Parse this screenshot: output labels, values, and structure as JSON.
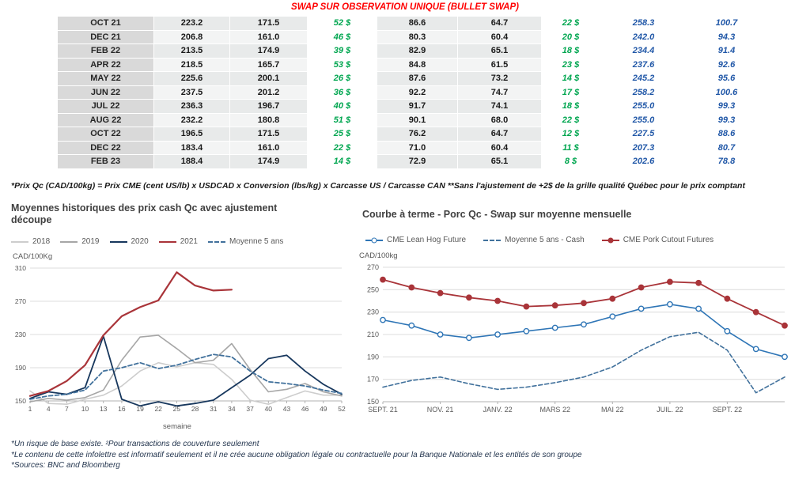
{
  "title": "SWAP SUR OBSERVATION UNIQUE (BULLET SWAP)",
  "colors": {
    "title-red": "#ff0000",
    "green": "#00a650",
    "blue": "#2057a7",
    "month-bg": "#d9d9d9",
    "band-a": "#e8eaea",
    "band-b": "#f3f4f4",
    "axis-text": "#595959",
    "chart-title": "#404040",
    "footnote-navy": "#24364f"
  },
  "table": {
    "rows": [
      [
        "OCT 21",
        "223.2",
        "171.5",
        "52 $",
        "86.6",
        "64.7",
        "22 $",
        "258.3",
        "100.7"
      ],
      [
        "DEC 21",
        "206.8",
        "161.0",
        "46 $",
        "80.3",
        "60.4",
        "20 $",
        "242.0",
        "94.3"
      ],
      [
        "FEB 22",
        "213.5",
        "174.9",
        "39 $",
        "82.9",
        "65.1",
        "18 $",
        "234.4",
        "91.4"
      ],
      [
        "APR 22",
        "218.5",
        "165.7",
        "53 $",
        "84.8",
        "61.5",
        "23 $",
        "237.6",
        "92.6"
      ],
      [
        "MAY 22",
        "225.6",
        "200.1",
        "26 $",
        "87.6",
        "73.2",
        "14 $",
        "245.2",
        "95.6"
      ],
      [
        "JUN 22",
        "237.5",
        "201.2",
        "36 $",
        "92.2",
        "74.7",
        "17 $",
        "258.2",
        "100.6"
      ],
      [
        "JUL 22",
        "236.3",
        "196.7",
        "40 $",
        "91.7",
        "74.1",
        "18 $",
        "255.0",
        "99.3"
      ],
      [
        "AUG 22",
        "232.2",
        "180.8",
        "51 $",
        "90.1",
        "68.0",
        "22 $",
        "255.0",
        "99.3"
      ],
      [
        "OCT 22",
        "196.5",
        "171.5",
        "25 $",
        "76.2",
        "64.7",
        "12 $",
        "227.5",
        "88.6"
      ],
      [
        "DEC 22",
        "183.4",
        "161.0",
        "22 $",
        "71.0",
        "60.4",
        "11 $",
        "207.3",
        "80.7"
      ],
      [
        "FEB 23",
        "188.4",
        "174.9",
        "14 $",
        "72.9",
        "65.1",
        "8 $",
        "202.6",
        "78.8"
      ]
    ],
    "footnote": "*Prix Qc (CAD/100kg) = Prix CME (cent US/lb) x USDCAD x Conversion (lbs/kg) x Carcasse US / Carcasse CAN **Sans l'ajustement de +2$ de la grille qualité Québec pour le prix comptant"
  },
  "chart_data": [
    {
      "type": "line",
      "title": "Moyennes historiques des prix cash Qc avec ajustement découpe",
      "ylabel": "CAD/100Kg",
      "xlabel": "semaine",
      "xlim": [
        1,
        52
      ],
      "ylim": [
        150,
        310
      ],
      "yticks": [
        150,
        190,
        230,
        270,
        310
      ],
      "xticks": [
        1,
        4,
        7,
        10,
        13,
        16,
        19,
        22,
        25,
        28,
        31,
        34,
        37,
        40,
        43,
        46,
        49,
        52
      ],
      "x": [
        1,
        4,
        7,
        10,
        13,
        16,
        19,
        22,
        25,
        28,
        31,
        34,
        37,
        40,
        43,
        46,
        49,
        52
      ],
      "grid": true,
      "legend_position": "top-left",
      "series": [
        {
          "name": "2018",
          "color": "#cdcdcd",
          "width": 1.6,
          "values": [
            162,
            147,
            146,
            152,
            157,
            168,
            186,
            196,
            191,
            196,
            194,
            176,
            151,
            146,
            154,
            162,
            157,
            157
          ]
        },
        {
          "name": "2019",
          "color": "#a6a6a6",
          "width": 1.6,
          "values": [
            149,
            153,
            151,
            154,
            163,
            199,
            227,
            229,
            213,
            196,
            199,
            219,
            188,
            161,
            164,
            171,
            161,
            156
          ]
        },
        {
          "name": "2020",
          "color": "#17375d",
          "width": 1.8,
          "values": [
            153,
            161,
            158,
            166,
            228,
            152,
            144,
            149,
            144,
            147,
            151,
            166,
            181,
            201,
            205,
            186,
            170,
            158
          ]
        },
        {
          "name": "2021",
          "color": "#a93439",
          "width": 2.2,
          "values": [
            156,
            162,
            174,
            193,
            229,
            252,
            263,
            271,
            305,
            289,
            283,
            284
          ]
        },
        {
          "name": "Moyenne 5 ans",
          "color": "#41719c",
          "width": 1.8,
          "dash": true,
          "values": [
            152,
            156,
            158,
            163,
            186,
            190,
            196,
            189,
            193,
            200,
            206,
            203,
            186,
            173,
            171,
            168,
            163,
            159
          ]
        }
      ]
    },
    {
      "type": "line",
      "title": "Courbe à terme - Porc Qc - Swap sur moyenne mensuelle",
      "ylabel": "CAD/100kg",
      "xlabel": "",
      "xlim": [
        0,
        14
      ],
      "ylim": [
        150,
        270
      ],
      "yticks": [
        150,
        170,
        190,
        210,
        230,
        250,
        270
      ],
      "x": [
        0,
        1,
        2,
        3,
        4,
        5,
        6,
        7,
        8,
        9,
        10,
        11,
        12,
        13,
        14
      ],
      "xtick_positions": [
        0,
        2,
        4,
        6,
        8,
        10,
        12
      ],
      "xtick_labels": [
        "SEPT. 21",
        "NOV. 21",
        "JANV. 22",
        "MARS 22",
        "MAI 22",
        "JUIL. 22",
        "SEPT. 22"
      ],
      "grid": true,
      "legend_position": "top",
      "series": [
        {
          "name": "CME Lean Hog Future",
          "color": "#2e75b6",
          "width": 1.6,
          "marker": "open",
          "values": [
            223,
            218,
            210,
            207,
            210,
            213,
            216,
            219,
            226,
            233,
            237,
            233,
            213,
            197,
            190
          ]
        },
        {
          "name": "Moyenne 5 ans - Cash",
          "color": "#41719c",
          "width": 1.6,
          "dash": true,
          "values": [
            163,
            169,
            172,
            166,
            161,
            163,
            167,
            172,
            181,
            196,
            208,
            212,
            196,
            158,
            172
          ]
        },
        {
          "name": "CME Pork Cutout Futures",
          "color": "#a93439",
          "width": 1.8,
          "marker": "filled",
          "values": [
            259,
            252,
            247,
            243,
            240,
            235,
            236,
            238,
            242,
            252,
            257,
            256,
            242,
            230,
            218
          ]
        }
      ]
    }
  ],
  "footnotes": [
    "*Un risque de base existe. ²Pour transactions de couverture seulement",
    "*Le contenu de cette infolettre est informatif seulement et il ne crée aucune obligation légale ou contractuelle pour la Banque Nationale et les entités de son groupe",
    "*Sources: BNC and Bloomberg"
  ]
}
